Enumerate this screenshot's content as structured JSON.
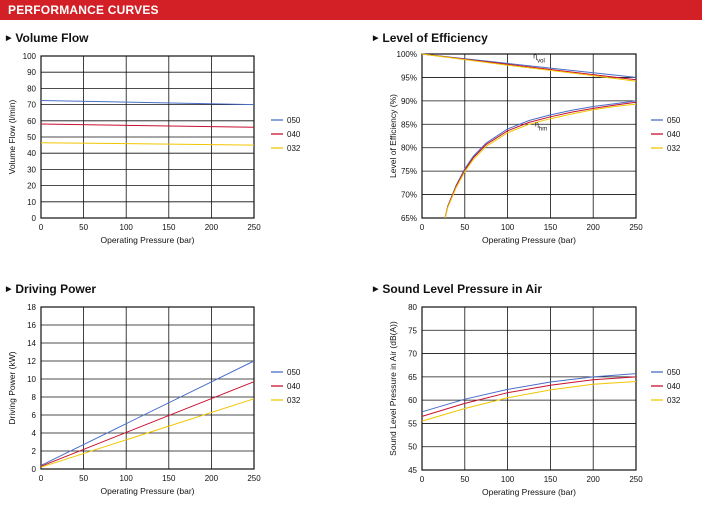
{
  "header": {
    "title": "PERFORMANCE CURVES"
  },
  "colors": {
    "banner": "#d32027",
    "s050": "#4a6fc7",
    "s040": "#c8102e",
    "s032": "#f2c500"
  },
  "chart_data": [
    {
      "id": "volume",
      "type": "line",
      "title": "Volume Flow",
      "xlabel": "Operating Pressure  (bar)",
      "ylabel": "Volume Flow  (l/min)",
      "xlim": [
        0,
        250
      ],
      "ylim": [
        0,
        100
      ],
      "xticks": [
        "0",
        "50",
        "100",
        "150",
        "200",
        "250"
      ],
      "yticks": [
        "0",
        "10",
        "20",
        "30",
        "40",
        "50",
        "60",
        "70",
        "80",
        "90",
        "100"
      ],
      "grid": true,
      "legend": "right",
      "series": [
        {
          "name": "050",
          "color": "#4a6fc7",
          "x": [
            0,
            250
          ],
          "y": [
            72.5,
            70.0
          ]
        },
        {
          "name": "040",
          "color": "#c8102e",
          "x": [
            0,
            250
          ],
          "y": [
            58.0,
            56.0
          ]
        },
        {
          "name": "032",
          "color": "#f2c500",
          "x": [
            0,
            250
          ],
          "y": [
            46.5,
            45.0
          ]
        }
      ]
    },
    {
      "id": "efficiency",
      "type": "line",
      "title": "Level of Efficiency",
      "xlabel": "Operating Pressure  (bar)",
      "ylabel": "Level of Efficiency  (%)",
      "xlim": [
        0,
        250
      ],
      "ylim": [
        65,
        100
      ],
      "xticks": [
        "0",
        "50",
        "100",
        "150",
        "200",
        "250"
      ],
      "yticks": [
        "65%",
        "70%",
        "75%",
        "80%",
        "85%",
        "90%",
        "95%",
        "100%"
      ],
      "grid": true,
      "legend": "right",
      "annotations": [
        {
          "main": "η",
          "sub": "vol",
          "x": 130,
          "y": 99.0
        },
        {
          "main": "η",
          "sub": "hm",
          "x": 132,
          "y": 84.5
        }
      ],
      "series": [
        {
          "name": "050",
          "color": "#4a6fc7",
          "x": [
            0,
            50,
            100,
            150,
            200,
            250
          ],
          "y": [
            100,
            99.0,
            98.0,
            97.0,
            96.0,
            95.0
          ],
          "x2": [
            27,
            30,
            40,
            50,
            60,
            75,
            100,
            125,
            150,
            175,
            200,
            225,
            250
          ],
          "y2": [
            65,
            67.5,
            72.0,
            75.5,
            78.2,
            81.0,
            84.0,
            85.8,
            87.0,
            88.0,
            88.8,
            89.4,
            90.0
          ]
        },
        {
          "name": "040",
          "color": "#c8102e",
          "x": [
            0,
            50,
            100,
            150,
            200,
            250
          ],
          "y": [
            100,
            98.9,
            97.8,
            96.7,
            95.6,
            94.5
          ],
          "x2": [
            27,
            30,
            40,
            50,
            60,
            75,
            100,
            125,
            150,
            175,
            200,
            225,
            250
          ],
          "y2": [
            65,
            67.4,
            71.8,
            75.2,
            77.9,
            80.7,
            83.6,
            85.4,
            86.6,
            87.6,
            88.4,
            89.1,
            89.7
          ]
        },
        {
          "name": "032",
          "color": "#f2c500",
          "x": [
            0,
            50,
            100,
            150,
            200,
            250
          ],
          "y": [
            100,
            98.8,
            97.6,
            96.5,
            95.4,
            94.2
          ],
          "x2": [
            27,
            30,
            40,
            50,
            60,
            75,
            100,
            125,
            150,
            175,
            200,
            225,
            250
          ],
          "y2": [
            65,
            67.2,
            71.5,
            74.9,
            77.5,
            80.3,
            83.2,
            85.0,
            86.2,
            87.2,
            88.1,
            88.8,
            89.3
          ]
        }
      ]
    },
    {
      "id": "power",
      "type": "line",
      "title": "Driving Power",
      "xlabel": "Operating Pressure  (bar)",
      "ylabel": "Driving Power  (kW)",
      "xlim": [
        0,
        250
      ],
      "ylim": [
        0,
        18
      ],
      "xticks": [
        "0",
        "50",
        "100",
        "150",
        "200",
        "250"
      ],
      "yticks": [
        "0",
        "2",
        "4",
        "6",
        "8",
        "10",
        "12",
        "14",
        "16",
        "18"
      ],
      "grid": true,
      "legend": "right",
      "series": [
        {
          "name": "050",
          "color": "#4a6fc7",
          "x": [
            0,
            250
          ],
          "y": [
            0.4,
            12.0
          ]
        },
        {
          "name": "040",
          "color": "#c8102e",
          "x": [
            0,
            250
          ],
          "y": [
            0.3,
            9.7
          ]
        },
        {
          "name": "032",
          "color": "#f2c500",
          "x": [
            0,
            250
          ],
          "y": [
            0.2,
            7.8
          ]
        }
      ]
    },
    {
      "id": "sound",
      "type": "line",
      "title": "Sound Level Pressure in Air",
      "xlabel": "Operating Pressure  (bar)",
      "ylabel": "Sound Level Pressure in Air  (dB(A))",
      "xlim": [
        0,
        250
      ],
      "ylim": [
        45,
        80
      ],
      "xticks": [
        "0",
        "50",
        "100",
        "150",
        "200",
        "250"
      ],
      "yticks": [
        "45",
        "50",
        "55",
        "60",
        "65",
        "70",
        "75",
        "80"
      ],
      "grid": true,
      "legend": "right",
      "series": [
        {
          "name": "050",
          "color": "#4a6fc7",
          "x": [
            0,
            50,
            100,
            150,
            200,
            250
          ],
          "y": [
            57.5,
            60.2,
            62.3,
            63.9,
            65.0,
            65.7
          ]
        },
        {
          "name": "040",
          "color": "#c8102e",
          "x": [
            0,
            50,
            100,
            150,
            200,
            250
          ],
          "y": [
            56.5,
            59.3,
            61.6,
            63.2,
            64.4,
            65.0
          ]
        },
        {
          "name": "032",
          "color": "#f2c500",
          "x": [
            0,
            50,
            100,
            150,
            200,
            250
          ],
          "y": [
            55.5,
            58.2,
            60.5,
            62.2,
            63.4,
            64.0
          ]
        }
      ]
    }
  ]
}
